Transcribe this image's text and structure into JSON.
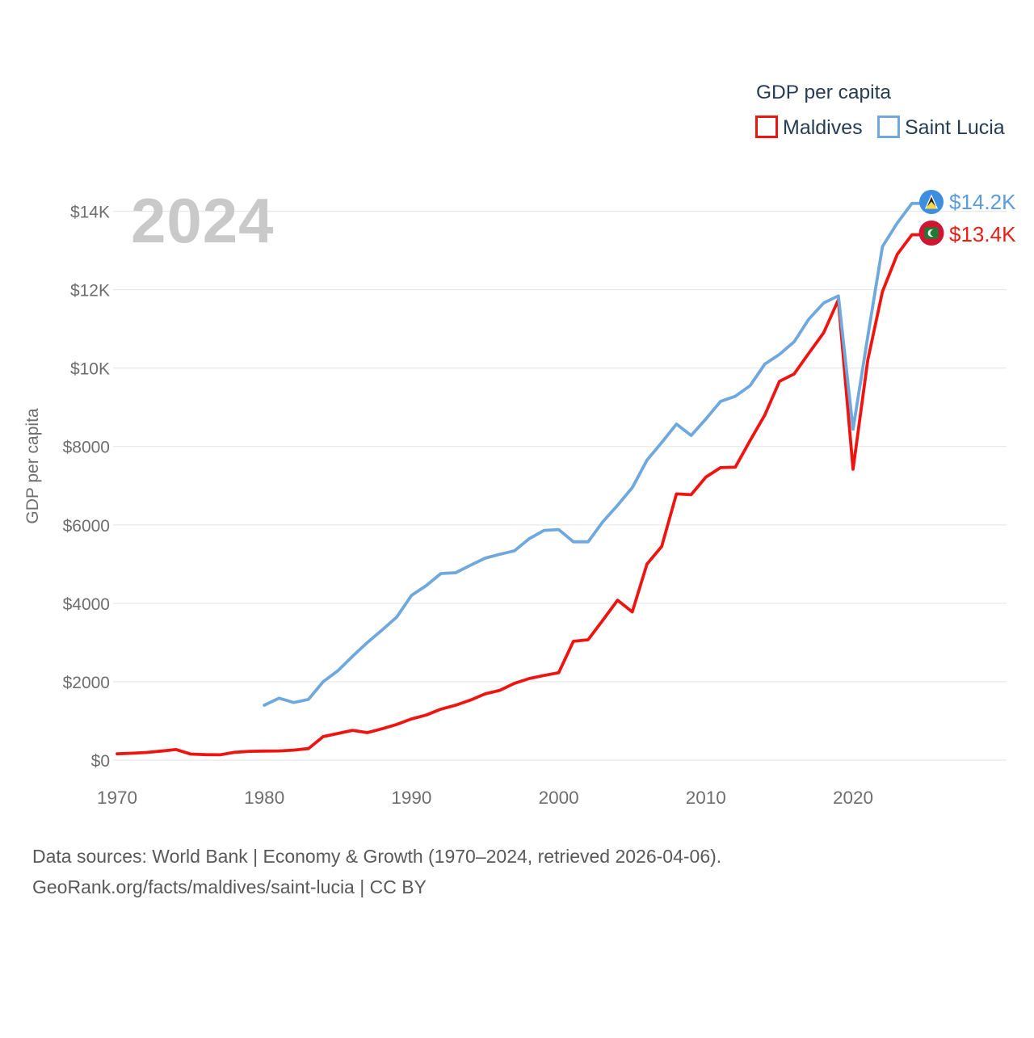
{
  "watermark": "2024",
  "legend": {
    "title": "GDP per capita",
    "items": [
      {
        "label": "Maldives",
        "color": "#ee1511"
      },
      {
        "label": "Saint Lucia",
        "color": "#6fa8dc"
      }
    ]
  },
  "colors": {
    "maldives_red": "#ee1511",
    "saint_lucia_blue": "#6fa8dc",
    "end_label_red": "#ed1d16",
    "end_label_blue": "#5b9cdf",
    "flag_circle_blue": "#3e8ee0",
    "flag_circle_red": "#d11633",
    "gridline": "#e8e8e8",
    "axis_text": "#6e6e6e",
    "legend_text": "#253c52",
    "watermark_gray": "#c9c9c9",
    "footer_text": "#595959"
  },
  "footer": {
    "line1": "Data sources: World Bank | Economy & Growth (1970–2024, retrieved 2026-04-06).",
    "line2": "GeoRank.org/facts/maldives/saint-lucia | CC BY"
  },
  "chart_data": {
    "type": "line",
    "title": "GDP per capita",
    "ylabel": "GDP per capita",
    "x_range": [
      1970,
      2024
    ],
    "y_range": [
      0,
      14000
    ],
    "grid": true,
    "legend_position": "top-right",
    "y_gridlines": [
      0,
      2000,
      4000,
      6000,
      8000,
      10000,
      12000,
      14000
    ],
    "y_ticks": [
      {
        "label": "$14K",
        "value": 14000
      },
      {
        "label": "$12K",
        "value": 12000
      },
      {
        "label": "$10K",
        "value": 10000
      },
      {
        "label": "$8000",
        "value": 8000
      },
      {
        "label": "$6000",
        "value": 6000
      },
      {
        "label": "$4000",
        "value": 4000
      },
      {
        "label": "$2000",
        "value": 2000
      },
      {
        "label": "$0",
        "value": 0
      }
    ],
    "x_ticks": [
      {
        "label": "1970",
        "value": 1970
      },
      {
        "label": "1980",
        "value": 1980
      },
      {
        "label": "1990",
        "value": 1990
      },
      {
        "label": "2000",
        "value": 2000
      },
      {
        "label": "2010",
        "value": 2010
      },
      {
        "label": "2020",
        "value": 2020
      }
    ],
    "series": [
      {
        "name": "Maldives",
        "color": "#ee1511",
        "end_label": "$13.4K",
        "points": [
          [
            1970,
            160
          ],
          [
            1971,
            175
          ],
          [
            1972,
            195
          ],
          [
            1973,
            230
          ],
          [
            1974,
            270
          ],
          [
            1975,
            155
          ],
          [
            1976,
            140
          ],
          [
            1977,
            135
          ],
          [
            1978,
            200
          ],
          [
            1979,
            225
          ],
          [
            1980,
            230
          ],
          [
            1981,
            235
          ],
          [
            1982,
            255
          ],
          [
            1983,
            295
          ],
          [
            1984,
            600
          ],
          [
            1985,
            680
          ],
          [
            1986,
            760
          ],
          [
            1987,
            700
          ],
          [
            1988,
            800
          ],
          [
            1989,
            910
          ],
          [
            1990,
            1050
          ],
          [
            1991,
            1150
          ],
          [
            1992,
            1300
          ],
          [
            1993,
            1400
          ],
          [
            1994,
            1530
          ],
          [
            1995,
            1690
          ],
          [
            1996,
            1780
          ],
          [
            1997,
            1960
          ],
          [
            1998,
            2080
          ],
          [
            1999,
            2160
          ],
          [
            2000,
            2230
          ],
          [
            2001,
            3030
          ],
          [
            2002,
            3070
          ],
          [
            2003,
            3570
          ],
          [
            2004,
            4080
          ],
          [
            2005,
            3780
          ],
          [
            2006,
            5000
          ],
          [
            2007,
            5450
          ],
          [
            2008,
            6790
          ],
          [
            2009,
            6770
          ],
          [
            2010,
            7220
          ],
          [
            2011,
            7460
          ],
          [
            2012,
            7470
          ],
          [
            2013,
            8150
          ],
          [
            2014,
            8800
          ],
          [
            2015,
            9660
          ],
          [
            2016,
            9850
          ],
          [
            2017,
            10380
          ],
          [
            2018,
            10900
          ],
          [
            2019,
            11740
          ],
          [
            2020,
            7420
          ],
          [
            2021,
            10200
          ],
          [
            2022,
            11950
          ],
          [
            2023,
            12900
          ],
          [
            2024,
            13400
          ]
        ]
      },
      {
        "name": "Saint Lucia",
        "color": "#6fa8dc",
        "end_label": "$14.2K",
        "points": [
          [
            1980,
            1400
          ],
          [
            1981,
            1580
          ],
          [
            1982,
            1470
          ],
          [
            1983,
            1550
          ],
          [
            1984,
            2000
          ],
          [
            1985,
            2280
          ],
          [
            1986,
            2650
          ],
          [
            1987,
            3000
          ],
          [
            1988,
            3320
          ],
          [
            1989,
            3650
          ],
          [
            1990,
            4200
          ],
          [
            1991,
            4450
          ],
          [
            1992,
            4760
          ],
          [
            1993,
            4780
          ],
          [
            1994,
            4970
          ],
          [
            1995,
            5150
          ],
          [
            1996,
            5250
          ],
          [
            1997,
            5340
          ],
          [
            1998,
            5650
          ],
          [
            1999,
            5860
          ],
          [
            2000,
            5880
          ],
          [
            2001,
            5570
          ],
          [
            2002,
            5570
          ],
          [
            2003,
            6080
          ],
          [
            2004,
            6500
          ],
          [
            2005,
            6950
          ],
          [
            2006,
            7650
          ],
          [
            2007,
            8100
          ],
          [
            2008,
            8570
          ],
          [
            2009,
            8280
          ],
          [
            2010,
            8700
          ],
          [
            2011,
            9150
          ],
          [
            2012,
            9280
          ],
          [
            2013,
            9550
          ],
          [
            2014,
            10100
          ],
          [
            2015,
            10350
          ],
          [
            2016,
            10670
          ],
          [
            2017,
            11250
          ],
          [
            2018,
            11660
          ],
          [
            2019,
            11840
          ],
          [
            2020,
            8440
          ],
          [
            2021,
            10800
          ],
          [
            2022,
            13100
          ],
          [
            2023,
            13700
          ],
          [
            2024,
            14200
          ]
        ]
      }
    ]
  }
}
